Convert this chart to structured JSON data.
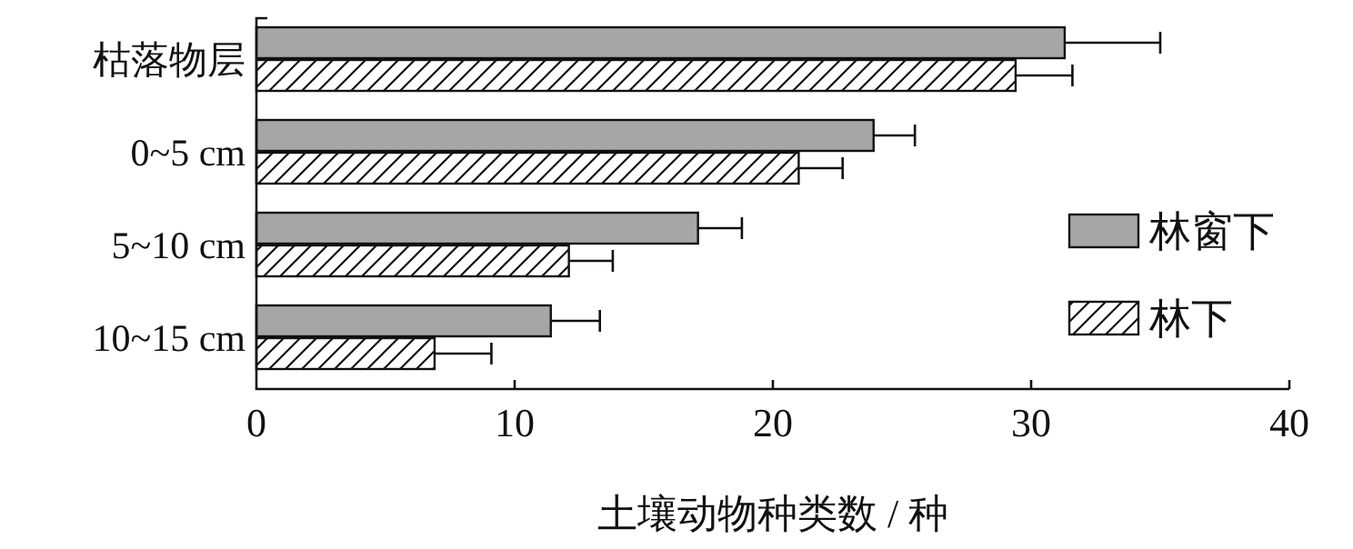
{
  "chart_data": {
    "type": "bar",
    "orientation": "horizontal",
    "xlabel": "土壤动物种类数 / 种",
    "categories": [
      "枯落物层",
      "0~5 cm",
      "5~10 cm",
      "10~15 cm"
    ],
    "series": [
      {
        "name": "林窗下",
        "color": "#a6a6a6",
        "values": [
          31.3,
          23.9,
          17.1,
          11.4
        ],
        "errors": [
          [
            31.3,
            35.0
          ],
          [
            23.9,
            25.5
          ],
          [
            17.1,
            18.8
          ],
          [
            11.4,
            13.3
          ]
        ]
      },
      {
        "name": "林下",
        "color": "#111111",
        "values": [
          29.4,
          21.0,
          12.1,
          6.9
        ],
        "errors": [
          [
            29.4,
            31.6
          ],
          [
            21.0,
            22.7
          ],
          [
            12.1,
            13.8
          ],
          [
            6.9,
            9.1
          ]
        ]
      }
    ],
    "xlim": [
      0,
      40
    ],
    "xticks": [
      0,
      10,
      20,
      30,
      40
    ],
    "legend": "right",
    "grid": false
  }
}
